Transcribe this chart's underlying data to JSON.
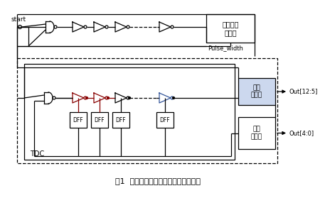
{
  "title": "图1  基于单环的时域温度传感器原理图",
  "box1_label": "脉冲宽度\n产生器",
  "box2_label": "粗略\n计数器",
  "box3_label": "精确\n编码器",
  "pulse_width_label": "Pulse_width",
  "tdc_label": "TDC",
  "start_label": "start",
  "out1_label": "Out[12:5]",
  "out2_label": "Out[4:0]",
  "dff_labels": [
    "DFF",
    "DFF",
    "DFF",
    "DFF"
  ],
  "lc": "#000000",
  "rc": "#880000",
  "bc": "#335599",
  "box2_bg": "#ccd8ee",
  "bg": "#ffffff"
}
